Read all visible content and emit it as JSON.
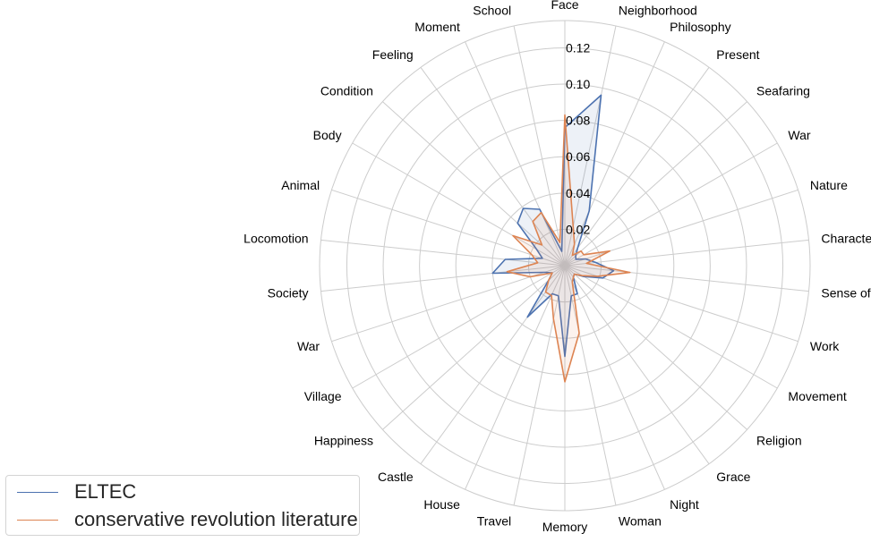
{
  "chart_data": {
    "type": "radar",
    "categories": [
      "Face",
      "Neighborhood",
      "Philosophy",
      "Present",
      "Seafaring",
      "War",
      "Nature",
      "Character",
      "Sense of Time",
      "Work",
      "Movement",
      "Religion",
      "Grace",
      "Night",
      "Woman",
      "Memory",
      "Travel",
      "House",
      "Castle",
      "Happiness",
      "Village",
      "War",
      "Society",
      "Locomotion",
      "Animal",
      "Body",
      "Condition",
      "Feeling",
      "Moment",
      "School"
    ],
    "rlim": [
      0,
      0.135
    ],
    "rticks": [
      "0.02",
      "0.04",
      "0.06",
      "0.08",
      "0.10",
      "0.12"
    ],
    "rtick_values": [
      0.02,
      0.04,
      0.06,
      0.08,
      0.1,
      0.12
    ],
    "grid": true,
    "legend_position": "lower-left",
    "series": [
      {
        "name": "ELTEC",
        "color": "#4c72b0",
        "values": [
          0.076,
          0.096,
          0.033,
          0.012,
          0.008,
          0.007,
          0.012,
          0.017,
          0.027,
          0.022,
          0.012,
          0.007,
          0.008,
          0.017,
          0.017,
          0.05,
          0.017,
          0.017,
          0.035,
          0.012,
          0.008,
          0.012,
          0.04,
          0.033,
          0.013,
          0.018,
          0.035,
          0.039,
          0.034,
          0.008
        ]
      },
      {
        "name": "conservative revolution literature",
        "color": "#dd8452",
        "values": [
          0.083,
          0.022,
          0.013,
          0.007,
          0.012,
          0.012,
          0.026,
          0.012,
          0.036,
          0.019,
          0.011,
          0.007,
          0.008,
          0.01,
          0.038,
          0.064,
          0.03,
          0.018,
          0.018,
          0.012,
          0.008,
          0.02,
          0.032,
          0.015,
          0.019,
          0.033,
          0.017,
          0.03,
          0.032,
          0.013
        ]
      }
    ]
  }
}
